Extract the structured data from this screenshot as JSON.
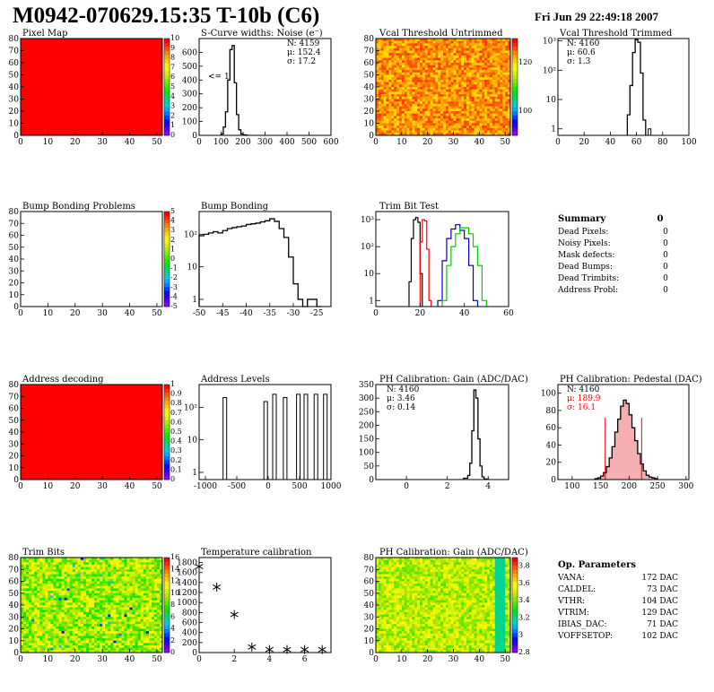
{
  "header": {
    "title": "M0942-070629.15:35 T-10b (C6)",
    "date": "Fri Jun 29 22:49:18 2007"
  },
  "colors": {
    "hist": "#000000",
    "red": "#ff0000",
    "blue": "#0000cc",
    "green": "#00cc00"
  },
  "chart_data": [
    {
      "type": "heatmap",
      "title": "Pixel Map",
      "fill": "uniform-red",
      "xticks": [
        "0",
        "10",
        "20",
        "30",
        "40",
        "50"
      ],
      "yticks": [
        "0",
        "10",
        "20",
        "30",
        "40",
        "50",
        "60",
        "70",
        "80"
      ],
      "xlim": [
        0,
        52
      ],
      "ylim": [
        0,
        80
      ],
      "palette": {
        "ticks": [
          "0",
          "1",
          "2",
          "3",
          "4",
          "5",
          "6",
          "7",
          "8",
          "9",
          "10"
        ],
        "min": 0,
        "max": 10
      }
    },
    {
      "type": "histogram",
      "title": "S-Curve widths: Noise (e⁻)",
      "stats": {
        "N": "N: 4159",
        "mu": "μ: 152.4",
        "sigma": "σ: 17.2"
      },
      "annotation": "<= 1",
      "xticks": [
        "0",
        "100",
        "200",
        "300",
        "400",
        "500",
        "600"
      ],
      "yticks": [
        "0",
        "100",
        "200",
        "300",
        "400",
        "500",
        "600"
      ],
      "xlim": [
        0,
        600
      ],
      "ylim": [
        0,
        700
      ],
      "bin_edges": [
        100,
        110,
        120,
        130,
        140,
        150,
        160,
        170,
        180,
        190,
        200,
        210,
        220
      ],
      "counts": [
        10,
        60,
        170,
        400,
        620,
        650,
        380,
        150,
        40,
        10,
        4,
        2
      ]
    },
    {
      "type": "heatmap",
      "title": "Vcal Threshold Untrimmed",
      "fill": "noise-orange",
      "xticks": [
        "0",
        "10",
        "20",
        "30",
        "40",
        "50"
      ],
      "yticks": [
        "0",
        "10",
        "20",
        "30",
        "40",
        "50",
        "60",
        "70",
        "80"
      ],
      "palette": {
        "ticks": [
          "100",
          "120"
        ],
        "min": 90,
        "max": 130
      }
    },
    {
      "type": "histogram",
      "title": "Vcal Threshold Trimmed",
      "log_y": true,
      "stats": {
        "N": "N: 4160",
        "mu": "μ: 60.6",
        "sigma": "σ:  1.3"
      },
      "xticks": [
        "0",
        "20",
        "40",
        "60",
        "80",
        "100"
      ],
      "yticks": [
        "1",
        "10",
        "10²",
        "10³"
      ],
      "xlim": [
        0,
        100
      ],
      "ylim_log": [
        0.6,
        1200
      ],
      "bin_edges": [
        53,
        55,
        57,
        59,
        61,
        63,
        65,
        67
      ],
      "counts": [
        3,
        30,
        400,
        1100,
        900,
        80,
        2
      ],
      "outliers": [
        {
          "x": 70,
          "count": 1
        }
      ]
    },
    {
      "type": "heatmap",
      "title": "Bump Bonding Problems",
      "fill": "empty",
      "xticks": [
        "0",
        "10",
        "20",
        "30",
        "40",
        "50"
      ],
      "yticks": [
        "0",
        "10",
        "20",
        "30",
        "40",
        "50",
        "60",
        "70",
        "80"
      ],
      "palette": {
        "ticks": [
          "-5",
          "-4",
          "-3",
          "-2",
          "-1",
          "0",
          "1",
          "2",
          "3",
          "4",
          "5"
        ],
        "min": -5,
        "max": 5
      }
    },
    {
      "type": "histogram",
      "title": "Bump Bonding",
      "log_y": true,
      "xticks": [
        "-50",
        "-45",
        "-40",
        "-35",
        "-30",
        "-25"
      ],
      "yticks": [
        "1",
        "10",
        "10²"
      ],
      "xlim": [
        -50,
        -22
      ],
      "ylim_log": [
        0.6,
        500
      ],
      "bin_edges": [
        -50,
        -49,
        -48,
        -47,
        -46,
        -45,
        -44,
        -43,
        -42,
        -41,
        -40,
        -39,
        -38,
        -37,
        -36,
        -35,
        -34,
        -33,
        -32,
        -31,
        -30,
        -29,
        -28,
        -27,
        -26,
        -25,
        -24
      ],
      "counts": [
        90,
        100,
        110,
        120,
        110,
        130,
        150,
        160,
        170,
        180,
        200,
        210,
        220,
        240,
        260,
        300,
        250,
        150,
        80,
        20,
        3,
        1,
        0,
        1,
        1,
        0
      ]
    },
    {
      "type": "histogram",
      "title": "Trim Bit Test",
      "log_y": true,
      "xticks": [
        "0",
        "20",
        "40",
        "60"
      ],
      "yticks": [
        "1",
        "10",
        "10²",
        "10³"
      ],
      "xlim": [
        0,
        60
      ],
      "ylim_log": [
        0.6,
        2000
      ],
      "series": [
        {
          "name": "",
          "color": "black",
          "bin_edges": [
            15,
            16,
            17,
            18,
            19,
            20,
            21
          ],
          "counts": [
            5,
            200,
            1000,
            1200,
            800,
            10
          ]
        },
        {
          "name": "",
          "color": "red",
          "bin_edges": [
            20,
            21,
            22,
            23,
            24,
            25
          ],
          "counts": [
            150,
            1000,
            900,
            80,
            1
          ]
        },
        {
          "name": "",
          "color": "blue",
          "bin_edges": [
            28,
            30,
            32,
            34,
            36,
            38,
            40,
            42,
            44,
            46
          ],
          "counts": [
            1,
            30,
            200,
            450,
            650,
            400,
            200,
            20,
            1
          ]
        },
        {
          "name": "",
          "color": "green",
          "bin_edges": [
            30,
            32,
            34,
            36,
            38,
            40,
            42,
            44,
            46,
            48,
            50
          ],
          "counts": [
            1,
            20,
            100,
            300,
            500,
            500,
            300,
            100,
            20,
            1
          ]
        }
      ]
    },
    {
      "type": "table",
      "title": "Summary",
      "total": "0",
      "rows": [
        {
          "label": "Dead Pixels:",
          "value": "0"
        },
        {
          "label": "Noisy Pixels:",
          "value": "0"
        },
        {
          "label": "Mask defects:",
          "value": "0"
        },
        {
          "label": "Dead Bumps:",
          "value": "0"
        },
        {
          "label": "Dead Trimbits:",
          "value": "0"
        },
        {
          "label": "Address Probl:",
          "value": "0"
        }
      ]
    },
    {
      "type": "heatmap",
      "title": "Address decoding",
      "fill": "uniform-red",
      "xticks": [
        "0",
        "10",
        "20",
        "30",
        "40",
        "50"
      ],
      "yticks": [
        "0",
        "10",
        "20",
        "30",
        "40",
        "50",
        "60",
        "70",
        "80"
      ],
      "palette": {
        "ticks": [
          "0",
          "0.1",
          "0.2",
          "0.3",
          "0.4",
          "0.5",
          "0.6",
          "0.7",
          "0.8",
          "0.9",
          "1"
        ],
        "min": 0,
        "max": 1
      }
    },
    {
      "type": "histogram",
      "title": "Address Levels",
      "log_y": true,
      "xticks": [
        "-1000",
        "-500",
        "0",
        "500",
        "1000"
      ],
      "yticks": [
        "1",
        "10",
        "10²"
      ],
      "xlim": [
        -1100,
        1000
      ],
      "ylim_log": [
        0.6,
        500
      ],
      "peaks": [
        {
          "x": -690,
          "count": 200
        },
        {
          "x": -40,
          "count": 150
        },
        {
          "x": 100,
          "count": 250
        },
        {
          "x": 270,
          "count": 200
        },
        {
          "x": 480,
          "count": 250
        },
        {
          "x": 600,
          "count": 250
        },
        {
          "x": 760,
          "count": 250
        },
        {
          "x": 910,
          "count": 250
        }
      ]
    },
    {
      "type": "histogram",
      "title": "PH Calibration: Gain (ADC/DAC)",
      "stats": {
        "N": "N: 4160",
        "mu": "μ: 3.46",
        "sigma": "σ: 0.14"
      },
      "xticks": [
        "0",
        "2",
        "4"
      ],
      "yticks": [
        "0",
        "50",
        "100",
        "150",
        "200",
        "250",
        "300",
        "350"
      ],
      "xlim": [
        -1.5,
        5
      ],
      "ylim": [
        0,
        350
      ],
      "bin_edges": [
        2.8,
        3.0,
        3.1,
        3.2,
        3.3,
        3.4,
        3.5,
        3.6,
        3.7,
        3.8,
        4.0
      ],
      "counts": [
        5,
        15,
        60,
        180,
        330,
        300,
        150,
        50,
        10,
        2
      ]
    },
    {
      "type": "histogram",
      "title": "PH Calibration: Pedestal (DAC)",
      "stats": {
        "N": "N: 4160",
        "mu": "μ: 189.9",
        "sigma": "σ: 16.1"
      },
      "xticks": [
        "100",
        "150",
        "200",
        "250",
        "300"
      ],
      "yticks": [
        "0",
        "20",
        "40",
        "60",
        "80",
        "100"
      ],
      "xlim": [
        75,
        305
      ],
      "ylim": [
        0,
        110
      ],
      "bin_edges": [
        140,
        145,
        150,
        155,
        160,
        165,
        170,
        175,
        180,
        185,
        190,
        195,
        200,
        205,
        210,
        215,
        220,
        225,
        230,
        235,
        240,
        245,
        250
      ],
      "counts": [
        1,
        2,
        4,
        8,
        15,
        25,
        38,
        55,
        70,
        85,
        92,
        88,
        75,
        60,
        45,
        30,
        18,
        10,
        5,
        3,
        2,
        1
      ],
      "cut_lines": [
        158,
        222
      ]
    },
    {
      "type": "heatmap",
      "title": "Trim Bits",
      "fill": "noise-green",
      "xticks": [
        "0",
        "10",
        "20",
        "30",
        "40",
        "50"
      ],
      "yticks": [
        "0",
        "10",
        "20",
        "30",
        "40",
        "50",
        "60",
        "70",
        "80"
      ],
      "palette": {
        "ticks": [
          "0",
          "2",
          "4",
          "6",
          "8",
          "10",
          "12",
          "14",
          "16"
        ],
        "min": 0,
        "max": 16
      }
    },
    {
      "type": "scatter",
      "title": "Temperature calibration",
      "marker": "*",
      "xticks": [
        "0",
        "2",
        "4",
        "6"
      ],
      "yticks": [
        "0",
        "200",
        "400",
        "600",
        "800",
        "1000",
        "1200",
        "1400",
        "1600",
        "1800"
      ],
      "xlim": [
        0,
        7.5
      ],
      "ylim": [
        0,
        1900
      ],
      "x": [
        0,
        1,
        2,
        3,
        4,
        5,
        6,
        7
      ],
      "y": [
        1720,
        1310,
        760,
        110,
        60,
        60,
        60,
        60
      ]
    },
    {
      "type": "heatmap",
      "title": "PH Calibration: Gain (ADC/DAC)",
      "fill": "noise-green-band",
      "xticks": [
        "0",
        "10",
        "20",
        "30",
        "40",
        "50"
      ],
      "yticks": [
        "0",
        "10",
        "20",
        "30",
        "40",
        "50",
        "60",
        "70",
        "80"
      ],
      "palette": {
        "ticks": [
          "2.8",
          "3",
          "3.2",
          "3.4",
          "3.6",
          "3.8"
        ],
        "min": 2.8,
        "max": 3.9
      }
    },
    {
      "type": "table",
      "title": "Op. Parameters",
      "rows": [
        {
          "label": "VANA:",
          "value": "172 DAC"
        },
        {
          "label": "CALDEL:",
          "value": "73 DAC"
        },
        {
          "label": "VTHR:",
          "value": "104 DAC"
        },
        {
          "label": "VTRIM:",
          "value": "129 DAC"
        },
        {
          "label": "IBIAS_DAC:",
          "value": "71 DAC"
        },
        {
          "label": "VOFFSETOP:",
          "value": "102 DAC"
        }
      ]
    }
  ]
}
